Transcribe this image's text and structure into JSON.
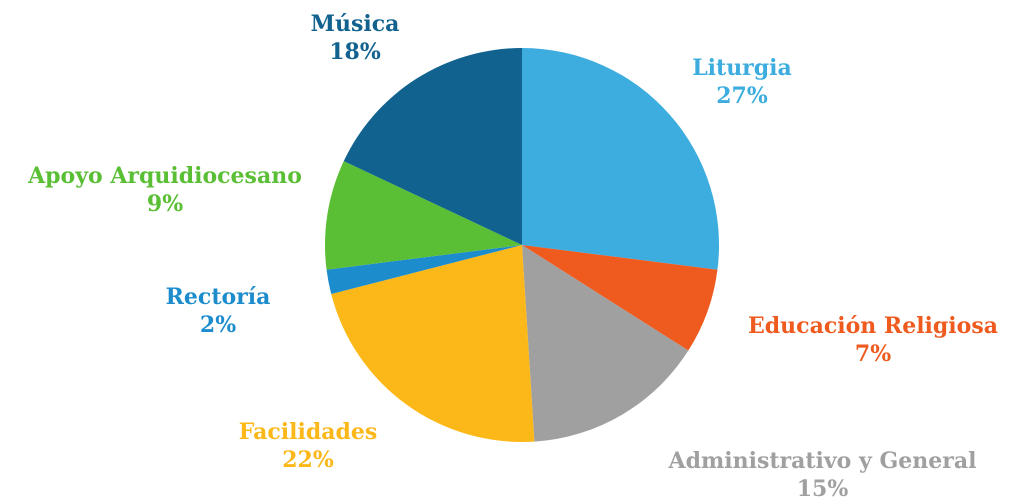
{
  "chart_data": {
    "type": "pie",
    "start_angle_deg": 0,
    "direction": "clockwise",
    "slices": [
      {
        "label": "Liturgia",
        "value": 27,
        "pct_label": "27%",
        "color": "#3cadde"
      },
      {
        "label": "Educación Religiosa",
        "value": 7,
        "pct_label": "7%",
        "color": "#ef5a1f"
      },
      {
        "label": "Administrativo y General",
        "value": 15,
        "pct_label": "15%",
        "color": "#a0a0a0"
      },
      {
        "label": "Facilidades",
        "value": 22,
        "pct_label": "22%",
        "color": "#fcb818"
      },
      {
        "label": "Rectoría",
        "value": 2,
        "pct_label": "2%",
        "color": "#1d8ccc"
      },
      {
        "label": "Apoyo Arquidiocesano",
        "value": 9,
        "pct_label": "9%",
        "color": "#5abf34"
      },
      {
        "label": "Música",
        "value": 18,
        "pct_label": "18%",
        "color": "#11628f"
      }
    ]
  }
}
